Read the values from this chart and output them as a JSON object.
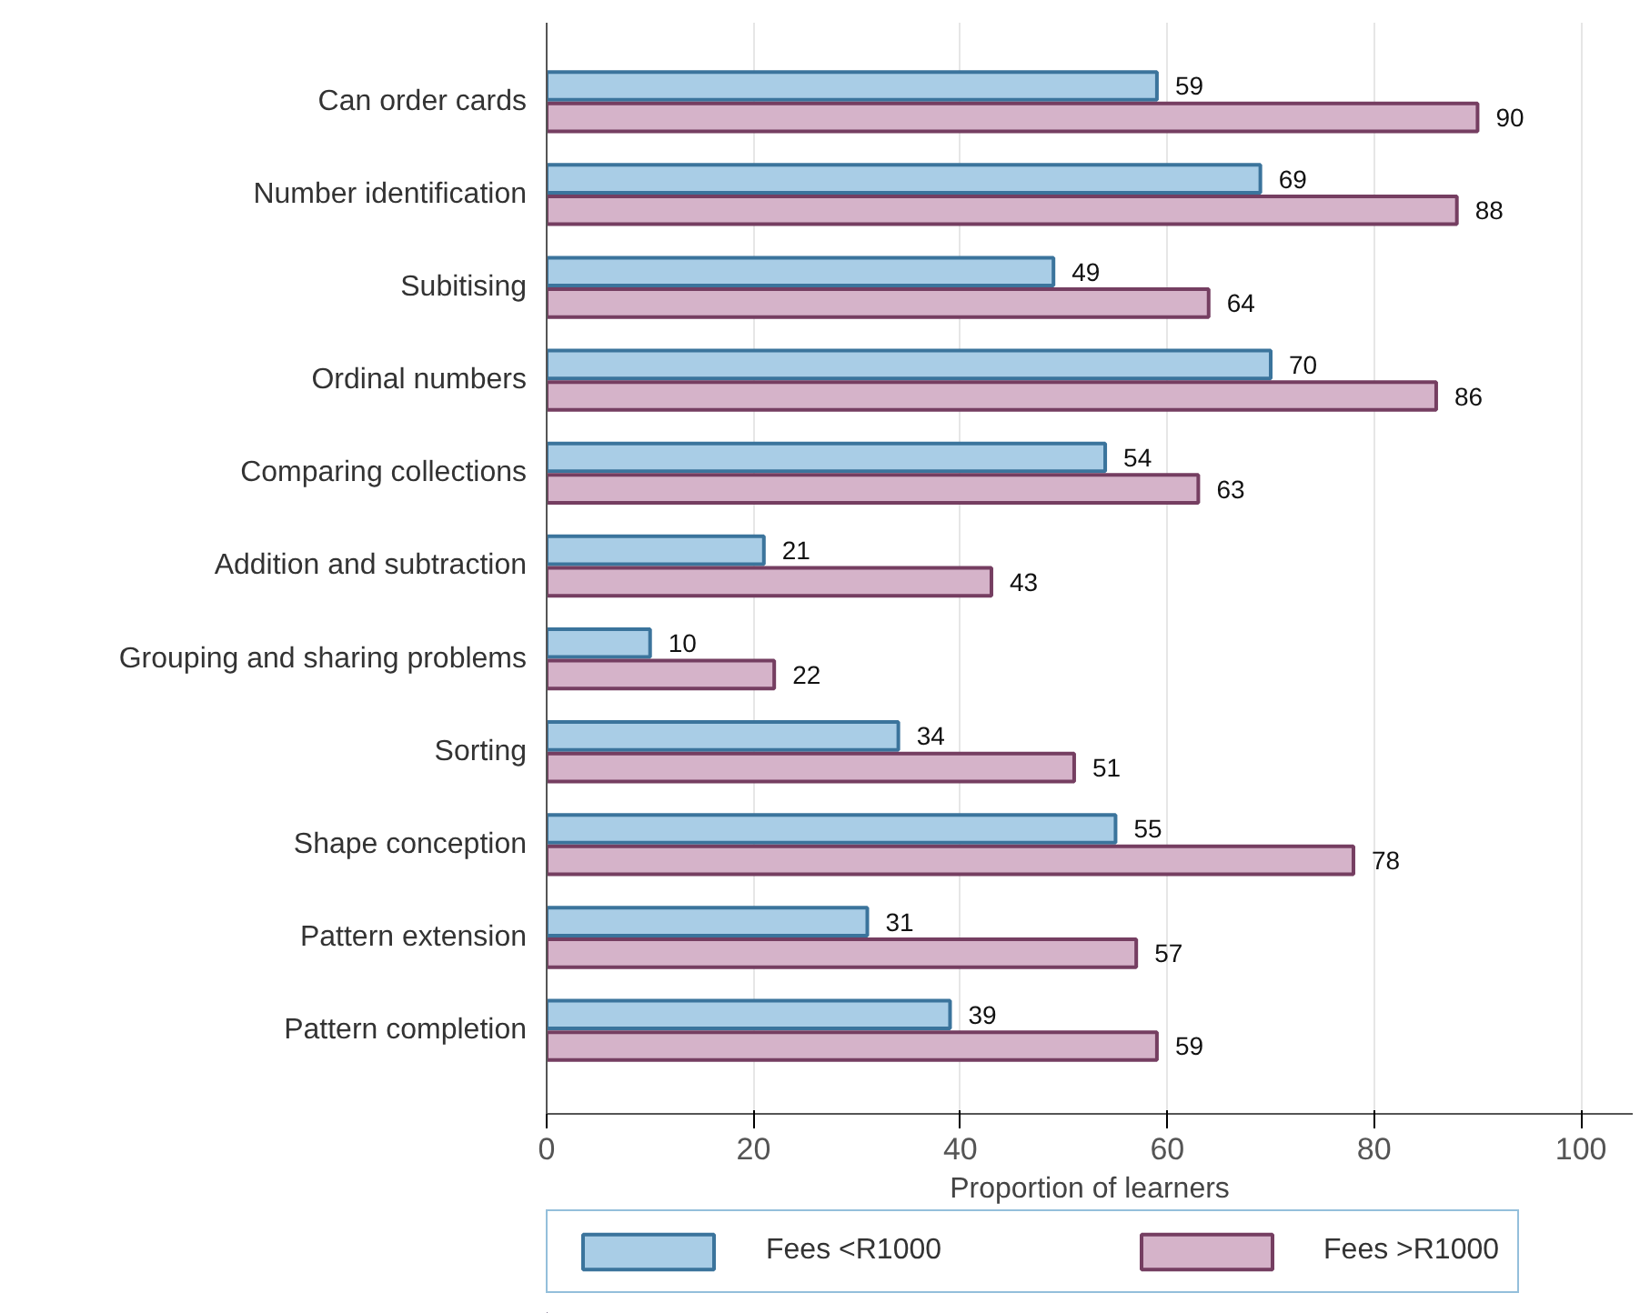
{
  "chart_data": {
    "type": "bar",
    "orientation": "horizontal",
    "xlabel": "Proportion of learners",
    "categories": [
      "Can order cards",
      "Number identification",
      "Subitising",
      "Ordinal numbers",
      "Comparing collections",
      "Addition and subtraction",
      "Grouping and sharing problems",
      "Sorting",
      "Shape conception",
      "Pattern extension",
      "Pattern completion"
    ],
    "series": [
      {
        "name": "Fees <R1000",
        "color": "#a9cde6",
        "values": [
          59,
          69,
          49,
          70,
          54,
          21,
          10,
          34,
          55,
          31,
          39
        ]
      },
      {
        "name": "Fees >R1000",
        "color": "#d5b3c9",
        "values": [
          90,
          88,
          64,
          86,
          63,
          43,
          22,
          51,
          78,
          57,
          59
        ]
      }
    ],
    "xlim": [
      0,
      105
    ],
    "xticks": [
      0,
      20,
      40,
      60,
      80,
      100
    ],
    "grid": "x",
    "legend": "bottom",
    "data_labels": true
  }
}
